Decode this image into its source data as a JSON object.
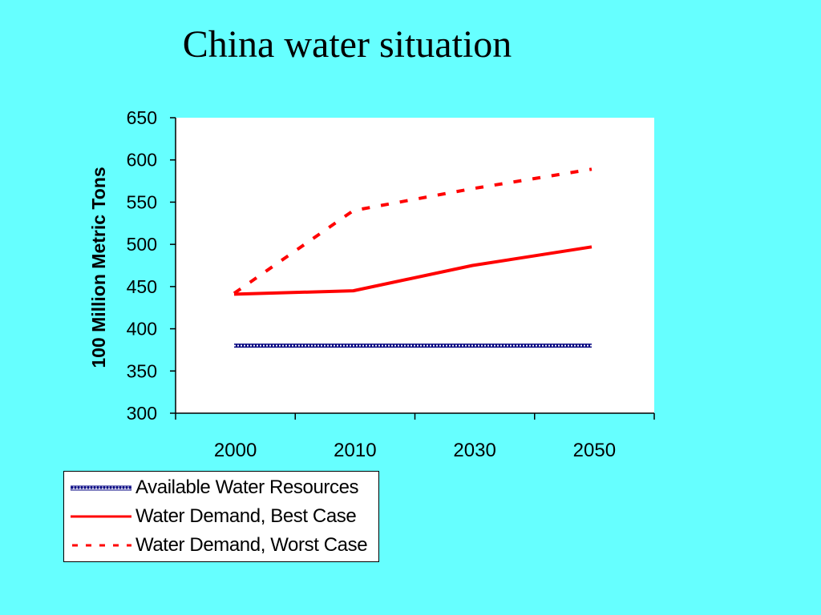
{
  "title": "China water situation",
  "colors": {
    "background": "#66ffff",
    "plot_background": "#ffffff",
    "available": "#000080",
    "best": "#ff0000",
    "worst": "#ff0000"
  },
  "legend": {
    "items": [
      {
        "label": "Available Water Resources",
        "style": "hatched"
      },
      {
        "label": "Water Demand, Best Case",
        "style": "solid"
      },
      {
        "label": "Water Demand, Worst Case",
        "style": "dashed"
      }
    ]
  },
  "chart_data": {
    "type": "line",
    "title": "China water situation",
    "xlabel": "",
    "ylabel": "100 Million Metric Tons",
    "ylim": [
      300,
      650
    ],
    "yticks": [
      300,
      350,
      400,
      450,
      500,
      550,
      600,
      650
    ],
    "categories": [
      "2000",
      "2010",
      "2030",
      "2050"
    ],
    "grid": false,
    "legend_position": "bottom-left",
    "series": [
      {
        "name": "Available Water Resources",
        "values": [
          380,
          380,
          380,
          380
        ]
      },
      {
        "name": "Water Demand, Best Case",
        "values": [
          441,
          445,
          475,
          497
        ]
      },
      {
        "name": "Water Demand, Worst Case",
        "values": [
          442,
          540,
          566,
          589
        ]
      }
    ]
  }
}
